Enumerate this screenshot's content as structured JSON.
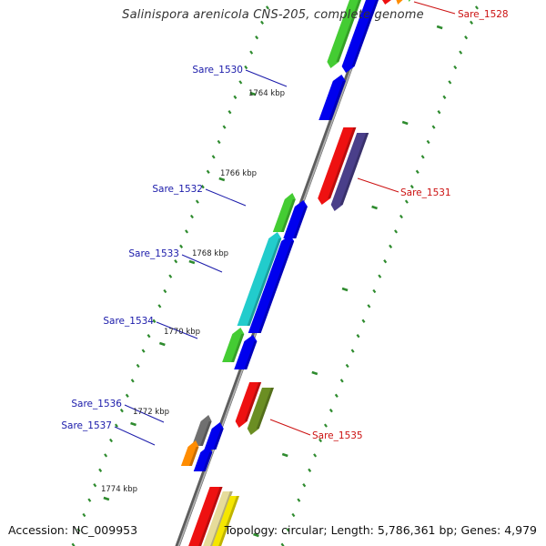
{
  "title": "Salinispora arenicola CNS-205, complete genome",
  "footer": {
    "accession": "Accession: NC_009953",
    "summary": "Topology: circular; Length: 5,786,361 bp; Genes: 4,979"
  },
  "colors": {
    "backbone": "#8c8c8c",
    "tick": "#2e8b2e",
    "label_forward": "#1a1aaa",
    "label_reverse": "#cc1111",
    "blue": "#0000ee",
    "green": "#44cc33",
    "cyan": "#22cccc",
    "red": "#ee1111",
    "slate": "#4a3f8a",
    "olive": "#6b8e23",
    "gray": "#707070",
    "orange": "#ff8c00",
    "yellow": "#f5e600",
    "khaki": "#e6dc9a"
  },
  "scale_labels": [
    "1764 kbp",
    "1766 kbp",
    "1768 kbp",
    "1770 kbp",
    "1772 kbp",
    "1774 kbp"
  ],
  "gene_labels": [
    {
      "text": "Sare_1528",
      "color": "red"
    },
    {
      "text": "Sare_1530",
      "color": "blue"
    },
    {
      "text": "Sare_1531",
      "color": "red"
    },
    {
      "text": "Sare_1532",
      "color": "blue"
    },
    {
      "text": "Sare_1533",
      "color": "blue"
    },
    {
      "text": "Sare_1534",
      "color": "blue"
    },
    {
      "text": "Sare_1535",
      "color": "red"
    },
    {
      "text": "Sare_1536",
      "color": "blue"
    },
    {
      "text": "Sare_1537",
      "color": "blue"
    }
  ]
}
